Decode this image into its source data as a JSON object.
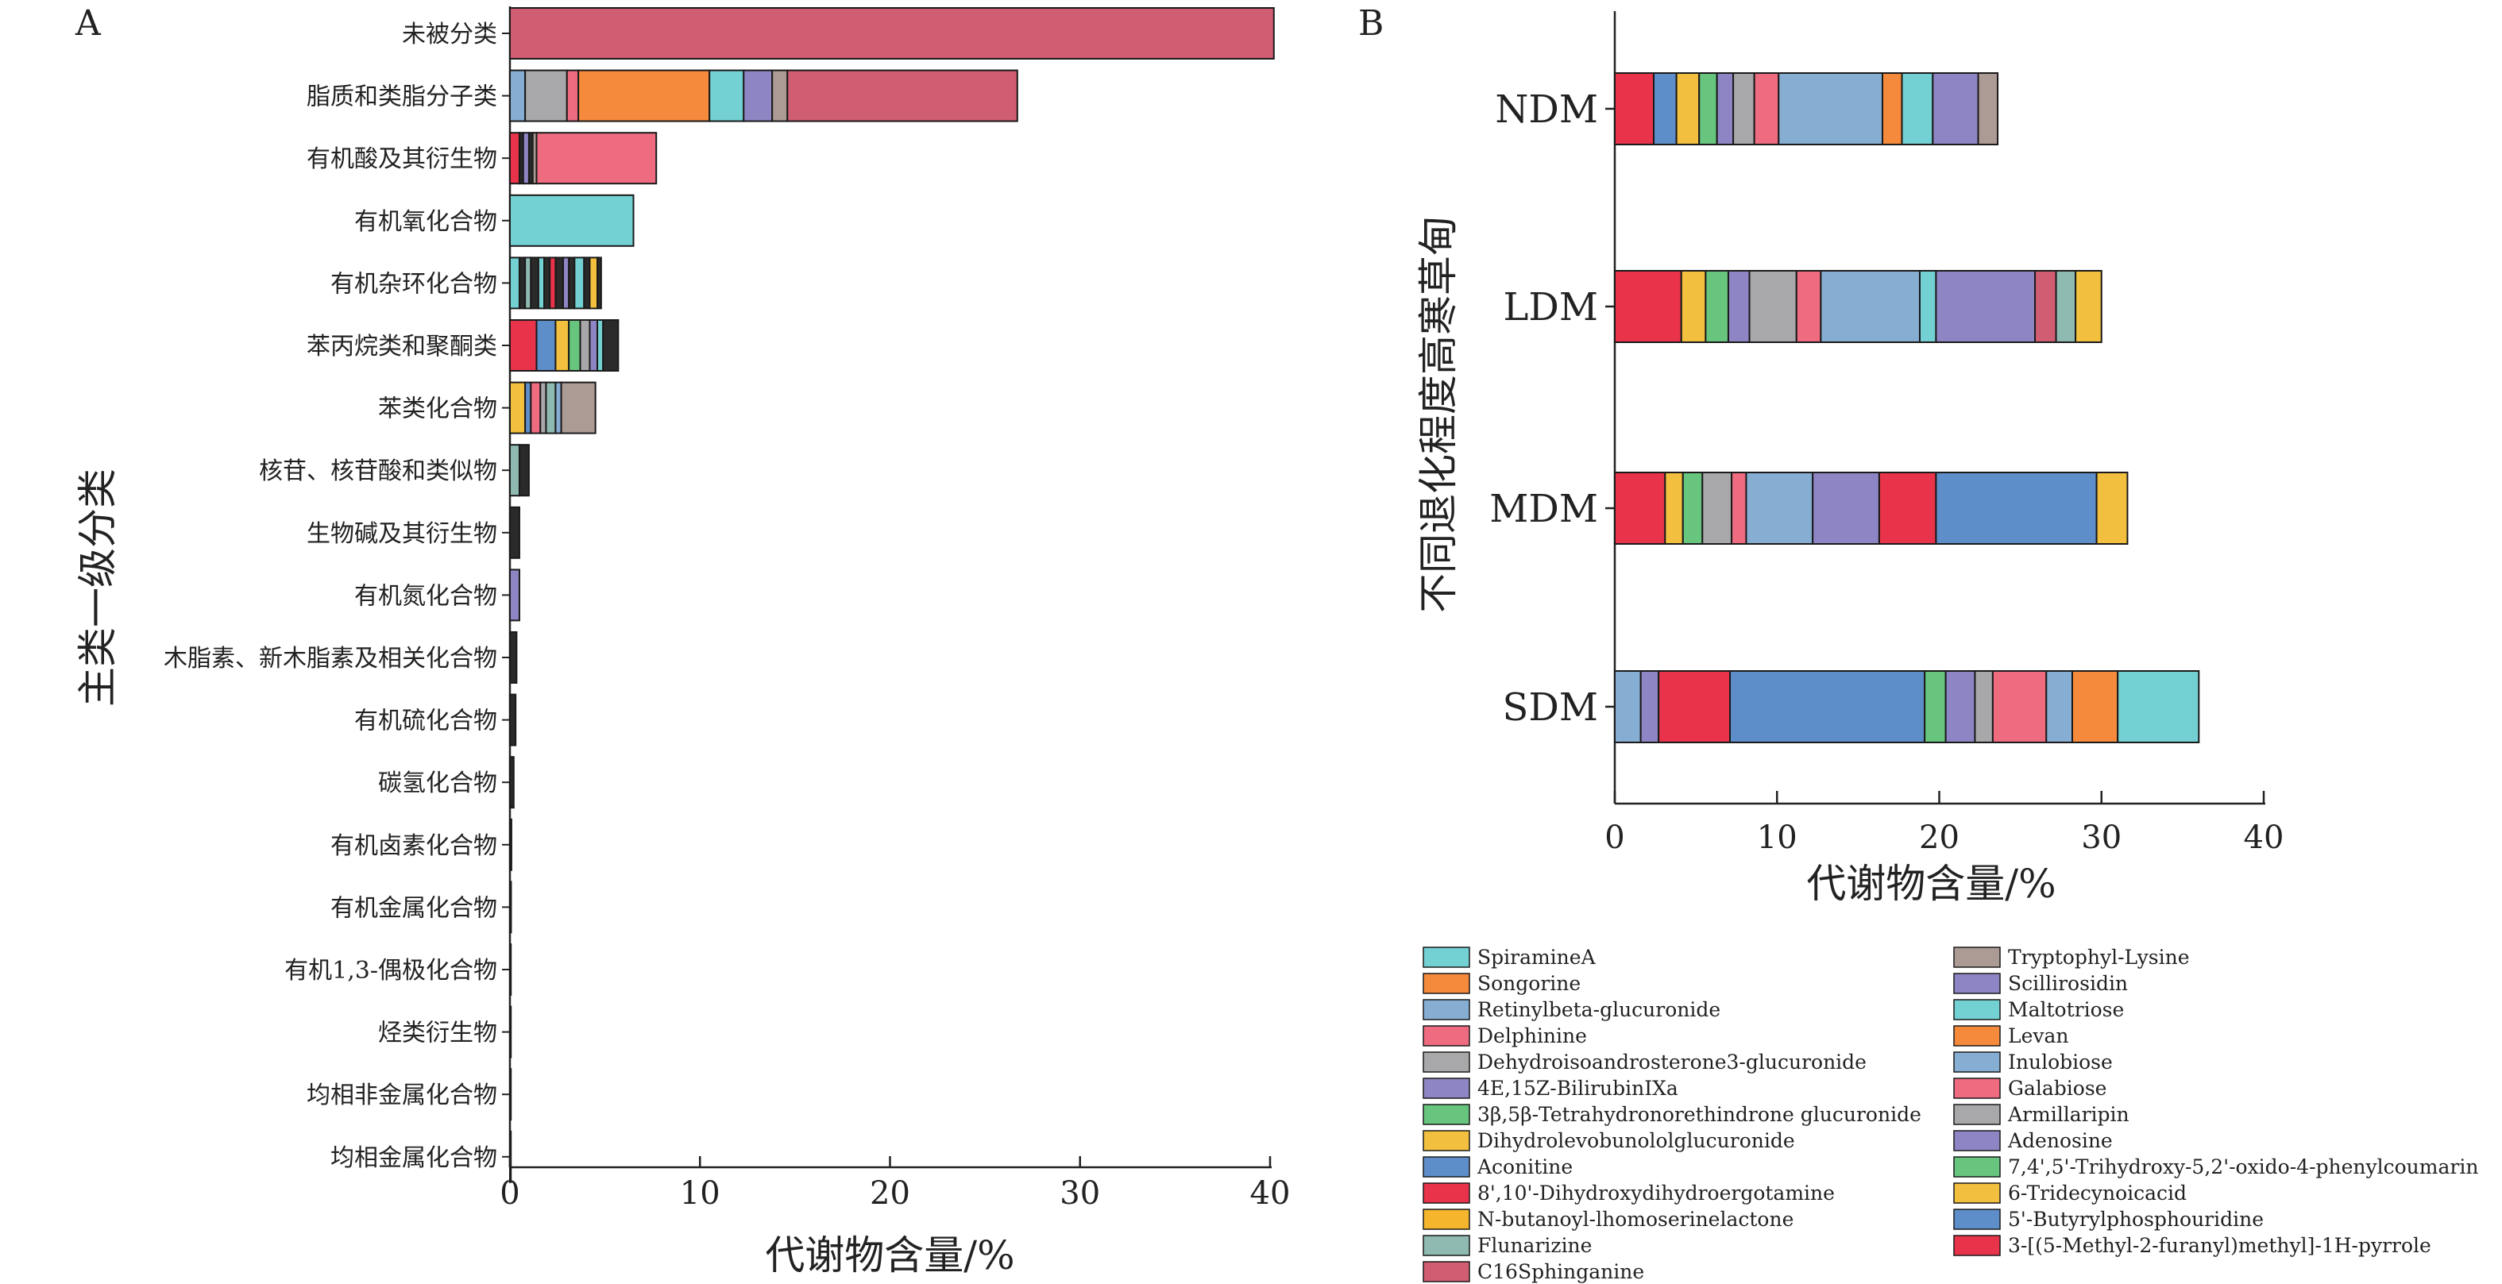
{
  "colors": {
    "SpiramineA": "#74D1D3",
    "Songorine": "#F68A3C",
    "Retinylbeta-glucuronide": "#86AED3",
    "Delphinine": "#EE6B80",
    "Dehydroisoandrosterone3-glucuronide": "#A8A8AA",
    "4E,15Z-BilirubinIXa": "#8E86C4",
    "3β,5β-Tetrahydronorethindrone glucuronide": "#67C57E",
    "Dihydrolevobunololglucuronide": "#F2C03E",
    "Aconitine": "#5E8EC9",
    "8',10'-Dihydroxydihydroergotamine": "#E8334A",
    "N-butanoyl-lhomoserinelactone": "#F5B62E",
    "Flunarizine": "#8FBAB2",
    "C16Sphinganine": "#D15D72",
    "Tryptophyl-Lysine": "#AC9A94",
    "Scillirosidin": "#8E86C4",
    "Maltotriose": "#74D1D3",
    "Levan": "#F68A3C",
    "Inulobiose": "#86AED3",
    "Galabiose": "#EE6B80",
    "Armillaripin": "#A8A8AA",
    "Adenosine": "#8E86C4",
    "7,4',5'-Trihydroxy-5,2'-oxido-4-phenylcoumarin": "#67C57E",
    "6-Tridecynoicacid": "#F2C03E",
    "5'-Butyrylphosphouridine": "#5E8EC9",
    "3-[(5-Methyl-2-furanyl)methyl]-1H-pyrrole": "#E8334A",
    "dark": "#2A2A2A"
  },
  "chart_data": [
    {
      "panel": "A",
      "type": "bar",
      "orientation": "horizontal",
      "stacked": true,
      "ylabel": "主类一级分类",
      "xlabel": "代谢物含量/%",
      "xlim": [
        0,
        40
      ],
      "xticks": [
        0,
        10,
        20,
        30,
        40
      ],
      "categories": [
        "未被分类",
        "脂质和类脂分子类",
        "有机酸及其衍生物",
        "有机氧化合物",
        "有机杂环化合物",
        "苯丙烷类和聚酮类",
        "苯类化合物",
        "核苷、核苷酸和类似物",
        "生物碱及其衍生物",
        "有机氮化合物",
        "木脂素、新木脂素及相关化合物",
        "有机硫化合物",
        "碳氢化合物",
        "有机卤素化合物",
        "有机金属化合物",
        "有机1,3-偶极化合物",
        "烃类衍生物",
        "均相非金属化合物",
        "均相金属化合物"
      ],
      "stacks": [
        [
          [
            "C16Sphinganine",
            40.2
          ]
        ],
        [
          [
            "Retinylbeta-glucuronide",
            0.8
          ],
          [
            "Dehydroisoandrosterone3-glucuronide",
            2.2
          ],
          [
            "Delphinine",
            0.6
          ],
          [
            "Songorine",
            6.9
          ],
          [
            "SpiramineA",
            1.8
          ],
          [
            "4E,15Z-BilirubinIXa",
            1.5
          ],
          [
            "Tryptophyl-Lysine",
            0.8
          ],
          [
            "C16Sphinganine",
            12.1
          ]
        ],
        [
          [
            "8',10'-Dihydroxydihydroergotamine",
            0.5
          ],
          [
            "dark",
            0.2
          ],
          [
            "Adenosine",
            0.3
          ],
          [
            "dark",
            0.2
          ],
          [
            "Tryptophyl-Lysine",
            0.2
          ],
          [
            "Galabiose",
            6.3
          ]
        ],
        [
          [
            "SpiramineA",
            6.5
          ]
        ],
        [
          [
            "SpiramineA",
            0.5
          ],
          [
            "dark",
            0.3
          ],
          [
            "Flunarizine",
            0.3
          ],
          [
            "dark",
            0.4
          ],
          [
            "SpiramineA",
            0.3
          ],
          [
            "dark",
            0.3
          ],
          [
            "8',10'-Dihydroxydihydroergotamine",
            0.3
          ],
          [
            "dark",
            0.4
          ],
          [
            "4E,15Z-BilirubinIXa",
            0.3
          ],
          [
            "dark",
            0.3
          ],
          [
            "SpiramineA",
            0.5
          ],
          [
            "dark",
            0.3
          ],
          [
            "Dihydrolevobunololglucuronide",
            0.4
          ],
          [
            "dark",
            0.2
          ]
        ],
        [
          [
            "8',10'-Dihydroxydihydroergotamine",
            1.4
          ],
          [
            "Aconitine",
            1.0
          ],
          [
            "Dihydrolevobunololglucuronide",
            0.7
          ],
          [
            "3β,5β-Tetrahydronorethindrone glucuronide",
            0.6
          ],
          [
            "Dehydroisoandrosterone3-glucuronide",
            0.5
          ],
          [
            "4E,15Z-BilirubinIXa",
            0.4
          ],
          [
            "SpiramineA",
            0.3
          ],
          [
            "dark",
            0.8
          ]
        ],
        [
          [
            "Dihydrolevobunololglucuronide",
            0.8
          ],
          [
            "Aconitine",
            0.3
          ],
          [
            "Delphinine",
            0.5
          ],
          [
            "Dehydroisoandrosterone3-glucuronide",
            0.3
          ],
          [
            "Flunarizine",
            0.5
          ],
          [
            "Retinylbeta-glucuronide",
            0.3
          ],
          [
            "Tryptophyl-Lysine",
            1.8
          ]
        ],
        [
          [
            "Flunarizine",
            0.5
          ],
          [
            "dark",
            0.5
          ]
        ],
        [
          [
            "dark",
            0.5
          ]
        ],
        [
          [
            "4E,15Z-BilirubinIXa",
            0.5
          ]
        ],
        [
          [
            "dark",
            0.35
          ]
        ],
        [
          [
            "dark",
            0.3
          ]
        ],
        [
          [
            "dark",
            0.2
          ]
        ],
        [
          [
            "dark",
            0.08
          ]
        ],
        [
          [
            "dark",
            0.06
          ]
        ],
        [
          [
            "dark",
            0.05
          ]
        ],
        [
          [
            "dark",
            0.05
          ]
        ],
        [
          [
            "dark",
            0.04
          ]
        ],
        [
          [
            "dark",
            0.04
          ]
        ]
      ]
    },
    {
      "panel": "B",
      "type": "bar",
      "orientation": "horizontal",
      "stacked": true,
      "ylabel": "不同退化程度高寒草甸",
      "xlabel": "代谢物含量/%",
      "xlim": [
        0,
        40
      ],
      "xticks": [
        0,
        10,
        20,
        30,
        40
      ],
      "categories": [
        "NDM",
        "LDM",
        "MDM",
        "SDM"
      ],
      "stacks": [
        [
          [
            "8',10'-Dihydroxydihydroergotamine",
            2.4
          ],
          [
            "Aconitine",
            1.4
          ],
          [
            "Dihydrolevobunololglucuronide",
            1.4
          ],
          [
            "3β,5β-Tetrahydronorethindrone glucuronide",
            1.1
          ],
          [
            "4E,15Z-BilirubinIXa",
            1.0
          ],
          [
            "Dehydroisoandrosterone3-glucuronide",
            1.3
          ],
          [
            "Delphinine",
            1.5
          ],
          [
            "Retinylbeta-glucuronide",
            6.4
          ],
          [
            "Songorine",
            1.2
          ],
          [
            "SpiramineA",
            1.9
          ],
          [
            "Scillirosidin",
            2.8
          ],
          [
            "Tryptophyl-Lysine",
            1.2
          ]
        ],
        [
          [
            "8',10'-Dihydroxydihydroergotamine",
            4.1
          ],
          [
            "Dihydrolevobunololglucuronide",
            1.5
          ],
          [
            "3β,5β-Tetrahydronorethindrone glucuronide",
            1.4
          ],
          [
            "4E,15Z-BilirubinIXa",
            1.3
          ],
          [
            "Dehydroisoandrosterone3-glucuronide",
            2.9
          ],
          [
            "Delphinine",
            1.5
          ],
          [
            "Retinylbeta-glucuronide",
            6.1
          ],
          [
            "SpiramineA",
            1.0
          ],
          [
            "Scillirosidin",
            6.1
          ],
          [
            "C16Sphinganine",
            1.3
          ],
          [
            "Flunarizine",
            1.2
          ],
          [
            "Dihydrolevobunololglucuronide",
            1.6
          ]
        ],
        [
          [
            "8',10'-Dihydroxydihydroergotamine",
            3.1
          ],
          [
            "Dihydrolevobunololglucuronide",
            1.1
          ],
          [
            "3β,5β-Tetrahydronorethindrone glucuronide",
            1.2
          ],
          [
            "Dehydroisoandrosterone3-glucuronide",
            1.8
          ],
          [
            "Delphinine",
            0.9
          ],
          [
            "Retinylbeta-glucuronide",
            4.1
          ],
          [
            "Scillirosidin",
            4.1
          ],
          [
            "8',10'-Dihydroxydihydroergotamine",
            3.5
          ],
          [
            "Aconitine",
            9.9
          ],
          [
            "Dihydrolevobunololglucuronide",
            1.9
          ]
        ],
        [
          [
            "Retinylbeta-glucuronide",
            1.6
          ],
          [
            "4E,15Z-BilirubinIXa",
            1.1
          ],
          [
            "8',10'-Dihydroxydihydroergotamine",
            4.4
          ],
          [
            "Aconitine",
            12.0
          ],
          [
            "3β,5β-Tetrahydronorethindrone glucuronide",
            1.3
          ],
          [
            "4E,15Z-BilirubinIXa",
            1.8
          ],
          [
            "Dehydroisoandrosterone3-glucuronide",
            1.1
          ],
          [
            "Delphinine",
            3.3
          ],
          [
            "Retinylbeta-glucuronide",
            1.6
          ],
          [
            "Songorine",
            2.8
          ],
          [
            "SpiramineA",
            5.0
          ]
        ]
      ]
    }
  ],
  "legend": {
    "left": [
      "SpiramineA",
      "Songorine",
      "Retinylbeta-glucuronide",
      "Delphinine",
      "Dehydroisoandrosterone3-glucuronide",
      "4E,15Z-BilirubinIXa",
      "3β,5β-Tetrahydronorethindrone glucuronide",
      "Dihydrolevobunololglucuronide",
      "Aconitine",
      "8',10'-Dihydroxydihydroergotamine",
      "N-butanoyl-lhomoserinelactone",
      "Flunarizine",
      "C16Sphinganine"
    ],
    "right": [
      "Tryptophyl-Lysine",
      "Scillirosidin",
      "Maltotriose",
      "Levan",
      "Inulobiose",
      "Galabiose",
      "Armillaripin",
      "Adenosine",
      "7,4',5'-Trihydroxy-5,2'-oxido-4-phenylcoumarin",
      "6-Tridecynoicacid",
      "5'-Butyrylphosphouridine",
      "3-[(5-Methyl-2-furanyl)methyl]-1H-pyrrole"
    ]
  }
}
